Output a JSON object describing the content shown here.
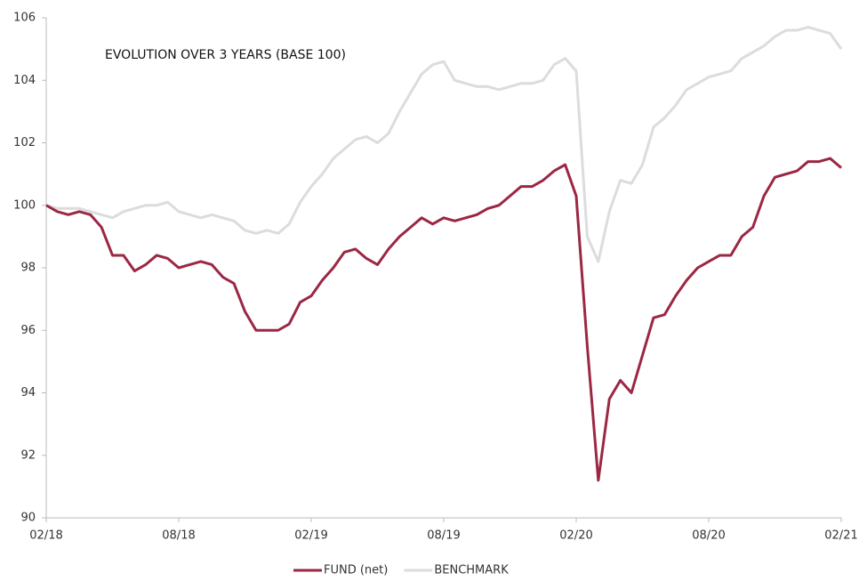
{
  "chart_data": {
    "type": "line",
    "title": "EVOLUTION OVER 3 YEARS (BASE 100)",
    "categories": [
      "02/18",
      null,
      null,
      null,
      null,
      null,
      null,
      null,
      null,
      null,
      null,
      null,
      "08/18",
      null,
      null,
      null,
      null,
      null,
      null,
      null,
      null,
      null,
      null,
      null,
      "02/19",
      null,
      null,
      null,
      null,
      null,
      null,
      null,
      null,
      null,
      null,
      null,
      "08/19",
      null,
      null,
      null,
      null,
      null,
      null,
      null,
      null,
      null,
      null,
      null,
      "02/20",
      null,
      null,
      null,
      null,
      null,
      null,
      null,
      null,
      null,
      null,
      null,
      "08/20",
      null,
      null,
      null,
      null,
      null,
      null,
      null,
      null,
      null,
      null,
      null,
      "02/21"
    ],
    "series": [
      {
        "name": "FUND (net)",
        "color": "#9b2743",
        "values": [
          100,
          99.8,
          99.7,
          99.8,
          99.7,
          99.3,
          98.4,
          98.4,
          97.9,
          98.1,
          98.4,
          98.3,
          98.0,
          98.1,
          98.2,
          98.1,
          97.7,
          97.5,
          96.6,
          96.0,
          96.0,
          96.0,
          96.2,
          96.9,
          97.1,
          97.6,
          98.0,
          98.5,
          98.6,
          98.3,
          98.1,
          98.6,
          99.0,
          99.3,
          99.6,
          99.4,
          99.6,
          99.5,
          99.6,
          99.7,
          99.9,
          100.0,
          100.3,
          100.6,
          100.6,
          100.8,
          101.1,
          101.3,
          100.3,
          95.5,
          91.2,
          93.8,
          94.4,
          94.0,
          95.2,
          96.4,
          96.5,
          97.1,
          97.6,
          98.0,
          98.2,
          98.4,
          98.4,
          99.0,
          99.3,
          100.3,
          100.9,
          101.0,
          101.1,
          101.4,
          101.4,
          101.5,
          101.2
        ]
      },
      {
        "name": "BENCHMARK",
        "color": "#dcdcdc",
        "values": [
          100,
          99.9,
          99.9,
          99.9,
          99.8,
          99.7,
          99.6,
          99.8,
          99.9,
          100,
          100,
          100.1,
          99.8,
          99.7,
          99.6,
          99.7,
          99.6,
          99.5,
          99.2,
          99.1,
          99.2,
          99.1,
          99.4,
          100.1,
          100.6,
          101,
          101.5,
          101.8,
          102.1,
          102.2,
          102.0,
          102.3,
          103.0,
          103.6,
          104.2,
          104.5,
          104.6,
          104,
          103.9,
          103.8,
          103.8,
          103.7,
          103.8,
          103.9,
          103.9,
          104.0,
          104.5,
          104.7,
          104.3,
          99,
          98.2,
          99.8,
          100.8,
          100.7,
          101.3,
          102.5,
          102.8,
          103.2,
          103.7,
          103.9,
          104.1,
          104.2,
          104.3,
          104.7,
          104.9,
          105.1,
          105.4,
          105.6,
          105.6,
          105.7,
          105.6,
          105.5,
          105.0
        ]
      }
    ],
    "ylim": [
      90,
      106
    ],
    "yticks": [
      90,
      92,
      94,
      96,
      98,
      100,
      102,
      104,
      106
    ],
    "legend": "bottom"
  }
}
